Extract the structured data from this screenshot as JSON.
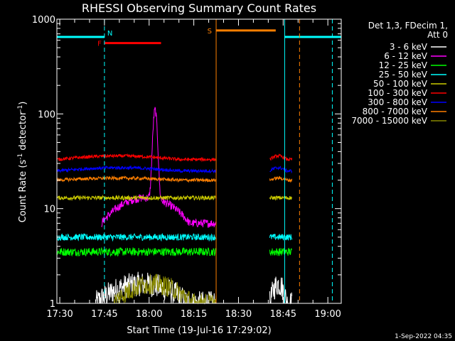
{
  "chart_data": {
    "type": "line",
    "title": "RHESSI Observing Summary Count Rates",
    "xlabel": "Start Time (19-Jul-16 17:29:02)",
    "ylabel_main": "Count Rate (s",
    "ylabel_sup1": "-1",
    "ylabel_mid": " detector",
    "ylabel_sup2": "-1",
    "ylabel_end": ")",
    "y_scale": "log",
    "ylim": [
      1,
      1000
    ],
    "xlim_minutes_after_1730": [
      -0.97,
      94.5
    ],
    "x_ticks": [
      {
        "label": "17:30",
        "minute": 0
      },
      {
        "label": "17:45",
        "minute": 15
      },
      {
        "label": "18:00",
        "minute": 30
      },
      {
        "label": "18:15",
        "minute": 45
      },
      {
        "label": "18:30",
        "minute": 60
      },
      {
        "label": "18:45",
        "minute": 75
      },
      {
        "label": "19:00",
        "minute": 90
      }
    ],
    "y_ticks": [
      {
        "label": "1",
        "value": 1
      },
      {
        "label": "10",
        "value": 10
      },
      {
        "label": "100",
        "value": 100
      },
      {
        "label": "1000",
        "value": 1000
      }
    ],
    "legend_header": [
      "Det 1,3, FDecim 1,",
      "Att 0"
    ],
    "legend_position": "top-right",
    "data_gap_minutes": [
      52.5,
      70.5
    ],
    "series": [
      {
        "name": "3 - 6 keV",
        "color": "#ffffff",
        "levels": [
          1.0,
          1.6
        ],
        "noise": 0.3,
        "segments": [
          [
            12,
            52.5
          ],
          [
            70.5,
            78
          ]
        ]
      },
      {
        "name": "6 - 12 keV",
        "color": "#ff00ff",
        "levels": [
          7.0,
          13.0
        ],
        "noise": 0.1,
        "segments": [
          [
            14,
            52.5
          ]
        ],
        "peak": {
          "minute": 32,
          "value": 110
        }
      },
      {
        "name": "12 - 25 keV",
        "color": "#00ff00",
        "levels": [
          3.5,
          3.5
        ],
        "noise": 0.1,
        "segments": [
          [
            -0.97,
            52.5
          ],
          [
            70.5,
            78
          ]
        ]
      },
      {
        "name": "25 - 50 keV",
        "color": "#00ffff",
        "levels": [
          5.0,
          5.0
        ],
        "noise": 0.08,
        "segments": [
          [
            -0.97,
            52.5
          ],
          [
            70.5,
            78
          ]
        ]
      },
      {
        "name": "50 - 100 keV",
        "color": "#cccc00",
        "levels": [
          13,
          13
        ],
        "noise": 0.05,
        "segments": [
          [
            -0.97,
            52.5
          ],
          [
            70.5,
            78
          ]
        ]
      },
      {
        "name": "100 - 300 keV",
        "color": "#ff0000",
        "levels": [
          33,
          36
        ],
        "noise": 0.04,
        "segments": [
          [
            -0.97,
            52.5
          ],
          [
            70.5,
            78
          ]
        ]
      },
      {
        "name": "300 - 800 keV",
        "color": "#0000ff",
        "levels": [
          25,
          27
        ],
        "noise": 0.04,
        "segments": [
          [
            -0.97,
            52.5
          ],
          [
            70.5,
            78
          ]
        ]
      },
      {
        "name": "800 - 7000 keV",
        "color": "#ff7f00",
        "levels": [
          20,
          21
        ],
        "noise": 0.04,
        "segments": [
          [
            -0.97,
            52.5
          ],
          [
            70.5,
            78
          ]
        ]
      },
      {
        "name": "7000 - 15000 keV",
        "color": "#888800",
        "levels": [
          1.0,
          1.6
        ],
        "noise": 0.25,
        "segments": [
          [
            18,
            52.5
          ]
        ]
      }
    ],
    "flags": [
      {
        "label": "N",
        "color": "#00ffff",
        "bars": [
          [
            -0.97,
            15
          ],
          [
            75.5,
            94.5
          ]
        ],
        "level": 650
      },
      {
        "label": "F",
        "color": "#ff0000",
        "bars": [
          [
            15,
            34
          ]
        ],
        "level": 560
      },
      {
        "label": "S",
        "color": "#ff7f00",
        "bars": [
          [
            52.5,
            72.5
          ]
        ],
        "level": 760
      }
    ],
    "markers": [
      {
        "color": "#00ffff",
        "style": "dashed",
        "minute": 15
      },
      {
        "color": "#ff7f00",
        "style": "solid",
        "minute": 52.5
      },
      {
        "color": "#00ffff",
        "style": "solid",
        "minute": 75.5
      },
      {
        "color": "#ff7f00",
        "style": "dashed",
        "minute": 80.5
      },
      {
        "color": "#00ffff",
        "style": "dashed",
        "minute": 91.5
      }
    ],
    "footer_date": "1-Sep-2022 04:35"
  }
}
